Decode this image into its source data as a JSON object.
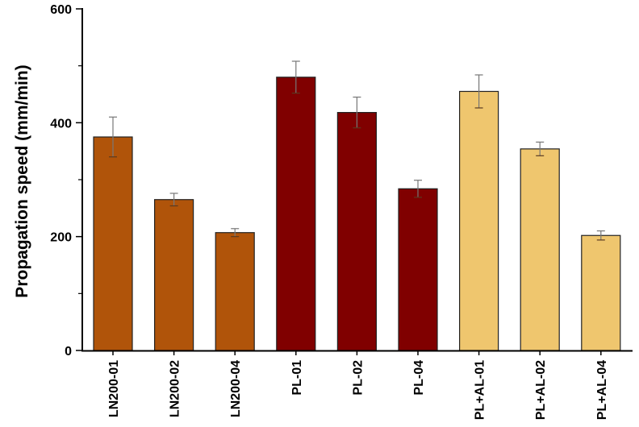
{
  "chart_data": {
    "type": "bar",
    "title": "",
    "xlabel": "",
    "ylabel": "Propagation speed (mm/min)",
    "ylim": [
      0,
      600
    ],
    "yticks": [
      0,
      200,
      400,
      600
    ],
    "yminor_ticks": [
      100,
      300,
      500
    ],
    "grid": false,
    "legend": null,
    "categories": [
      "LN200-01",
      "LN200-02",
      "LN200-04",
      "PL-01",
      "PL-02",
      "PL-04",
      "PL+AL-01",
      "PL+AL-02",
      "PL+AL-04"
    ],
    "values": [
      375,
      265,
      207,
      480,
      418,
      284,
      455,
      354,
      202
    ],
    "errors": [
      35,
      11,
      7,
      28,
      27,
      15,
      29,
      12,
      8
    ],
    "colors": [
      "#b0540a",
      "#b0540a",
      "#b0540a",
      "#800000",
      "#800000",
      "#800000",
      "#efc66e",
      "#efc66e",
      "#efc66e"
    ],
    "groups": [
      {
        "name": "LN200",
        "color": "#b0540a",
        "members": [
          "LN200-01",
          "LN200-02",
          "LN200-04"
        ]
      },
      {
        "name": "PL",
        "color": "#800000",
        "members": [
          "PL-01",
          "PL-02",
          "PL-04"
        ]
      },
      {
        "name": "PL+AL",
        "color": "#efc66e",
        "members": [
          "PL+AL-01",
          "PL+AL-02",
          "PL+AL-04"
        ]
      }
    ]
  }
}
